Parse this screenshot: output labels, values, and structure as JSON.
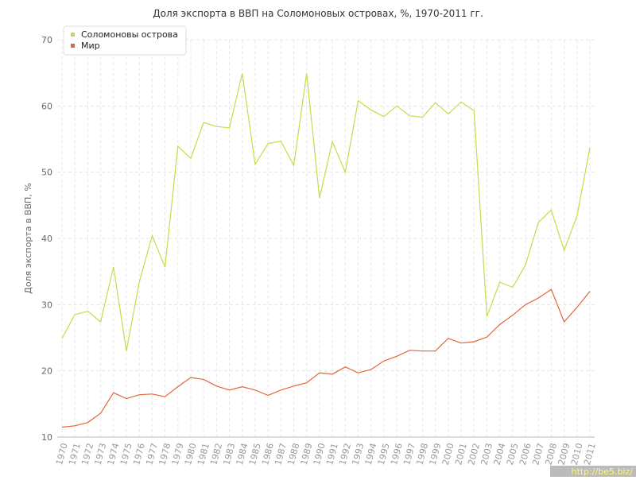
{
  "chart_data": {
    "type": "line",
    "title": "Доля экспорта в ВВП на Соломоновых островах, %, 1970-2011 гг.",
    "y_label": "Доля экспорта в ВВП, %",
    "watermark": "http://be5.biz/",
    "categories": [
      "1970",
      "1971",
      "1972",
      "1973",
      "1974",
      "1975",
      "1976",
      "1977",
      "1978",
      "1979",
      "1980",
      "1981",
      "1982",
      "1983",
      "1984",
      "1985",
      "1986",
      "1987",
      "1988",
      "1989",
      "1990",
      "1991",
      "1992",
      "1993",
      "1994",
      "1995",
      "1996",
      "1997",
      "1998",
      "1999",
      "2000",
      "2001",
      "2002",
      "2003",
      "2004",
      "2005",
      "2006",
      "2007",
      "2008",
      "2009",
      "2010",
      "2011"
    ],
    "series": [
      {
        "name": "Соломоновы острова",
        "color": "#c4dc4a",
        "values": [
          24.9,
          28.5,
          29.0,
          27.4,
          35.7,
          23.0,
          33.4,
          40.4,
          35.7,
          53.9,
          52.1,
          57.5,
          56.9,
          56.7,
          64.9,
          51.2,
          54.3,
          54.7,
          51.0,
          64.9,
          46.1,
          54.6,
          50.0,
          60.8,
          59.4,
          58.4,
          60.0,
          58.5,
          58.3,
          60.5,
          58.8,
          60.6,
          59.3,
          28.2,
          33.4,
          32.6,
          36.0,
          42.4,
          44.3,
          38.2,
          43.4,
          53.7
        ]
      },
      {
        "name": "Мир",
        "color": "#e0663a",
        "values": [
          11.5,
          11.7,
          12.2,
          13.6,
          16.7,
          15.8,
          16.4,
          16.5,
          16.1,
          17.6,
          19.0,
          18.7,
          17.7,
          17.1,
          17.6,
          17.1,
          16.3,
          17.1,
          17.7,
          18.2,
          19.7,
          19.5,
          20.6,
          19.7,
          20.2,
          21.5,
          22.2,
          23.1,
          23.0,
          23.0,
          24.9,
          24.2,
          24.4,
          25.1,
          27.0,
          28.4,
          30.0,
          31.0,
          32.3,
          27.4,
          29.6,
          32.0
        ]
      }
    ],
    "ylim": [
      10,
      70
    ],
    "yticks": [
      10,
      20,
      30,
      40,
      50,
      60,
      70
    ],
    "grid": true,
    "legend": "top-left"
  }
}
